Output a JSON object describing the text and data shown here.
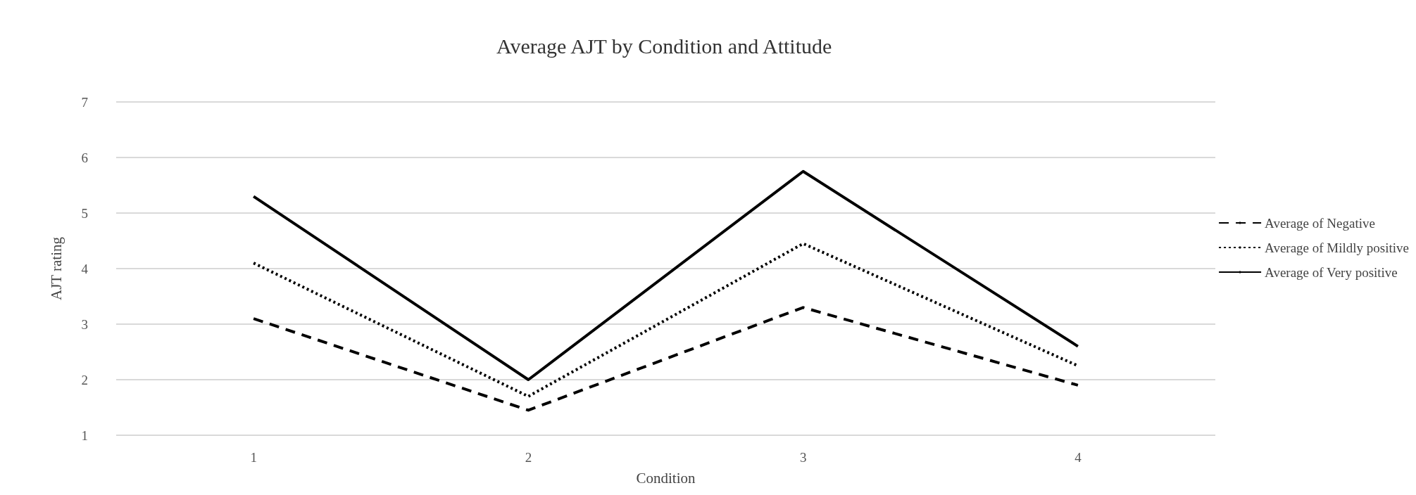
{
  "chart_data": {
    "type": "line",
    "title": "Average AJT by Condition and Attitude",
    "xlabel": "Condition",
    "ylabel": "AJT rating",
    "categories": [
      "1",
      "2",
      "3",
      "4"
    ],
    "series": [
      {
        "name": "Average of Negative",
        "color": "#000000",
        "line_style": "dashed",
        "values": [
          3.1,
          1.45,
          3.3,
          1.9
        ]
      },
      {
        "name": "Average of Mildly positive",
        "color": "#000000",
        "line_style": "dotted",
        "values": [
          4.1,
          1.7,
          4.45,
          2.25
        ]
      },
      {
        "name": "Average of Very positive",
        "color": "#000000",
        "line_style": "solid",
        "values": [
          5.3,
          2.0,
          5.75,
          2.6
        ]
      }
    ],
    "ylim": [
      1,
      7
    ],
    "yticks": [
      1,
      2,
      3,
      4,
      5,
      6,
      7
    ],
    "grid": "y",
    "legend": "right",
    "marker": "none"
  }
}
